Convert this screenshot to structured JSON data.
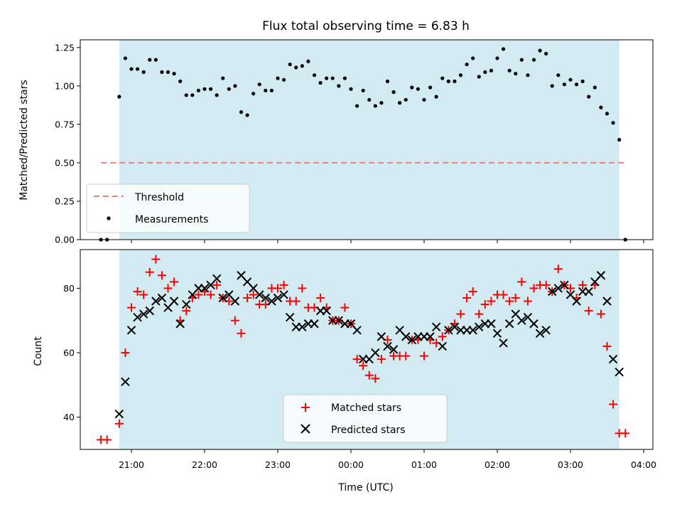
{
  "chart_data": [
    {
      "type": "scatter",
      "title": "Flux total observing time = 6.83 h",
      "ylabel": "Matched/Predicted stars",
      "xlabel": "",
      "ylim": [
        0,
        1.3
      ],
      "yticks": [
        "0.00",
        "0.25",
        "0.50",
        "0.75",
        "1.00",
        "1.25"
      ],
      "observing_window": [
        "20:50",
        "03:40"
      ],
      "threshold": 0.5,
      "legend_position": "lower-left",
      "series": [
        {
          "name": "Threshold",
          "kind": "dashed-line",
          "color": "#f08080",
          "x": [
            "20:35",
            "03:45"
          ],
          "values": [
            0.5,
            0.5
          ]
        },
        {
          "name": "Measurements",
          "kind": "points",
          "color": "#000000",
          "x": [
            "20:35",
            "20:40",
            "20:50",
            "20:55",
            "21:00",
            "21:05",
            "21:10",
            "21:15",
            "21:20",
            "21:25",
            "21:30",
            "21:35",
            "21:40",
            "21:45",
            "21:50",
            "21:55",
            "22:00",
            "22:05",
            "22:10",
            "22:15",
            "22:20",
            "22:25",
            "22:30",
            "22:35",
            "22:40",
            "22:45",
            "22:50",
            "22:55",
            "23:00",
            "23:05",
            "23:10",
            "23:15",
            "23:20",
            "23:25",
            "23:30",
            "23:35",
            "23:40",
            "23:45",
            "23:50",
            "23:55",
            "00:00",
            "00:05",
            "00:10",
            "00:15",
            "00:20",
            "00:25",
            "00:30",
            "00:35",
            "00:40",
            "00:45",
            "00:50",
            "00:55",
            "01:00",
            "01:05",
            "01:10",
            "01:15",
            "01:20",
            "01:25",
            "01:30",
            "01:35",
            "01:40",
            "01:45",
            "01:50",
            "01:55",
            "02:00",
            "02:05",
            "02:10",
            "02:15",
            "02:20",
            "02:25",
            "02:30",
            "02:35",
            "02:40",
            "02:45",
            "02:50",
            "02:55",
            "03:00",
            "03:05",
            "03:10",
            "03:15",
            "03:20",
            "03:25",
            "03:30",
            "03:35",
            "03:40",
            "03:45"
          ],
          "values": [
            0.0,
            0.0,
            0.93,
            1.18,
            1.11,
            1.11,
            1.09,
            1.17,
            1.17,
            1.09,
            1.09,
            1.08,
            1.03,
            0.94,
            0.94,
            0.97,
            0.98,
            0.98,
            0.94,
            1.05,
            0.98,
            1.0,
            0.83,
            0.81,
            0.95,
            1.01,
            0.97,
            0.97,
            1.05,
            1.04,
            1.14,
            1.12,
            1.13,
            1.16,
            1.07,
            1.02,
            1.05,
            1.05,
            1.0,
            1.05,
            0.98,
            0.87,
            0.97,
            0.91,
            0.87,
            0.89,
            1.03,
            0.96,
            0.89,
            0.91,
            0.99,
            0.98,
            0.91,
            0.99,
            0.93,
            1.05,
            1.03,
            1.03,
            1.07,
            1.14,
            1.18,
            1.06,
            1.09,
            1.1,
            1.18,
            1.24,
            1.1,
            1.08,
            1.17,
            1.07,
            1.17,
            1.23,
            1.21,
            1.0,
            1.07,
            1.01,
            1.04,
            1.01,
            1.03,
            0.93,
            0.99,
            0.86,
            0.82,
            0.76,
            0.65,
            0.0
          ]
        }
      ]
    },
    {
      "type": "scatter",
      "title": "",
      "xlabel": "Time (UTC)",
      "ylabel": "Count",
      "ylim": [
        30,
        92
      ],
      "yticks": [
        "40",
        "60",
        "80"
      ],
      "xticks": [
        "21:00",
        "22:00",
        "23:00",
        "00:00",
        "01:00",
        "02:00",
        "03:00",
        "04:00"
      ],
      "observing_window": [
        "20:50",
        "03:40"
      ],
      "legend_position": "lower-center",
      "series": [
        {
          "name": "Matched stars",
          "marker": "plus",
          "color": "#ff0000",
          "x": [
            "20:35",
            "20:40",
            "20:50",
            "20:55",
            "21:00",
            "21:05",
            "21:10",
            "21:15",
            "21:20",
            "21:25",
            "21:30",
            "21:35",
            "21:40",
            "21:45",
            "21:50",
            "21:55",
            "22:00",
            "22:05",
            "22:10",
            "22:15",
            "22:20",
            "22:25",
            "22:30",
            "22:35",
            "22:40",
            "22:45",
            "22:50",
            "22:55",
            "23:00",
            "23:05",
            "23:10",
            "23:15",
            "23:20",
            "23:25",
            "23:30",
            "23:35",
            "23:40",
            "23:45",
            "23:50",
            "23:55",
            "00:00",
            "00:05",
            "00:10",
            "00:15",
            "00:20",
            "00:25",
            "00:30",
            "00:35",
            "00:40",
            "00:45",
            "00:50",
            "00:55",
            "01:00",
            "01:05",
            "01:10",
            "01:15",
            "01:20",
            "01:25",
            "01:30",
            "01:35",
            "01:40",
            "01:45",
            "01:50",
            "01:55",
            "02:00",
            "02:05",
            "02:10",
            "02:15",
            "02:20",
            "02:25",
            "02:30",
            "02:35",
            "02:40",
            "02:45",
            "02:50",
            "02:55",
            "03:00",
            "03:05",
            "03:10",
            "03:15",
            "03:20",
            "03:25",
            "03:30",
            "03:35",
            "03:40",
            "03:45"
          ],
          "values": [
            33,
            33,
            38,
            60,
            74,
            79,
            78,
            85,
            89,
            84,
            80,
            82,
            70,
            73,
            77,
            78,
            79,
            78,
            81,
            77,
            76,
            70,
            66,
            77,
            78,
            75,
            75,
            80,
            80,
            81,
            76,
            76,
            80,
            74,
            74,
            77,
            74,
            70,
            70,
            74,
            69,
            58,
            56,
            53,
            52,
            58,
            64,
            59,
            59,
            59,
            64,
            64,
            59,
            64,
            63,
            65,
            67,
            69,
            72,
            77,
            79,
            72,
            75,
            76,
            78,
            78,
            76,
            77,
            82,
            76,
            80,
            81,
            81,
            79,
            86,
            81,
            80,
            77,
            81,
            73,
            81,
            72,
            62,
            44,
            35,
            35
          ]
        },
        {
          "name": "Predicted stars",
          "marker": "x",
          "color": "#000000",
          "x": [
            "20:50",
            "20:55",
            "21:00",
            "21:05",
            "21:10",
            "21:15",
            "21:20",
            "21:25",
            "21:30",
            "21:35",
            "21:40",
            "21:45",
            "21:50",
            "21:55",
            "22:00",
            "22:05",
            "22:10",
            "22:15",
            "22:20",
            "22:25",
            "22:30",
            "22:35",
            "22:40",
            "22:45",
            "22:50",
            "22:55",
            "23:00",
            "23:05",
            "23:10",
            "23:15",
            "23:20",
            "23:25",
            "23:30",
            "23:35",
            "23:40",
            "23:45",
            "23:50",
            "23:55",
            "00:00",
            "00:05",
            "00:10",
            "00:15",
            "00:20",
            "00:25",
            "00:30",
            "00:35",
            "00:40",
            "00:45",
            "00:50",
            "00:55",
            "01:00",
            "01:05",
            "01:10",
            "01:15",
            "01:20",
            "01:25",
            "01:30",
            "01:35",
            "01:40",
            "01:45",
            "01:50",
            "01:55",
            "02:00",
            "02:05",
            "02:10",
            "02:15",
            "02:20",
            "02:25",
            "02:30",
            "02:35",
            "02:40",
            "02:45",
            "02:50",
            "02:55",
            "03:00",
            "03:05",
            "03:10",
            "03:15",
            "03:20",
            "03:25",
            "03:30",
            "03:35",
            "03:40"
          ],
          "values": [
            41,
            51,
            67,
            71,
            72,
            73,
            76,
            77,
            74,
            76,
            69,
            75,
            78,
            80,
            80,
            81,
            83,
            77,
            78,
            76,
            84,
            82,
            80,
            78,
            77,
            76,
            77,
            78,
            71,
            68,
            68,
            69,
            69,
            73,
            73,
            70,
            70,
            69,
            69,
            67,
            58,
            58,
            60,
            65,
            62,
            61,
            67,
            65,
            64,
            65,
            65,
            65,
            68,
            62,
            67,
            68,
            67,
            67,
            67,
            68,
            69,
            69,
            66,
            63,
            69,
            72,
            70,
            71,
            69,
            66,
            67,
            79,
            80,
            81,
            78,
            76,
            79,
            79,
            82,
            84,
            76,
            58,
            54
          ]
        }
      ]
    }
  ]
}
